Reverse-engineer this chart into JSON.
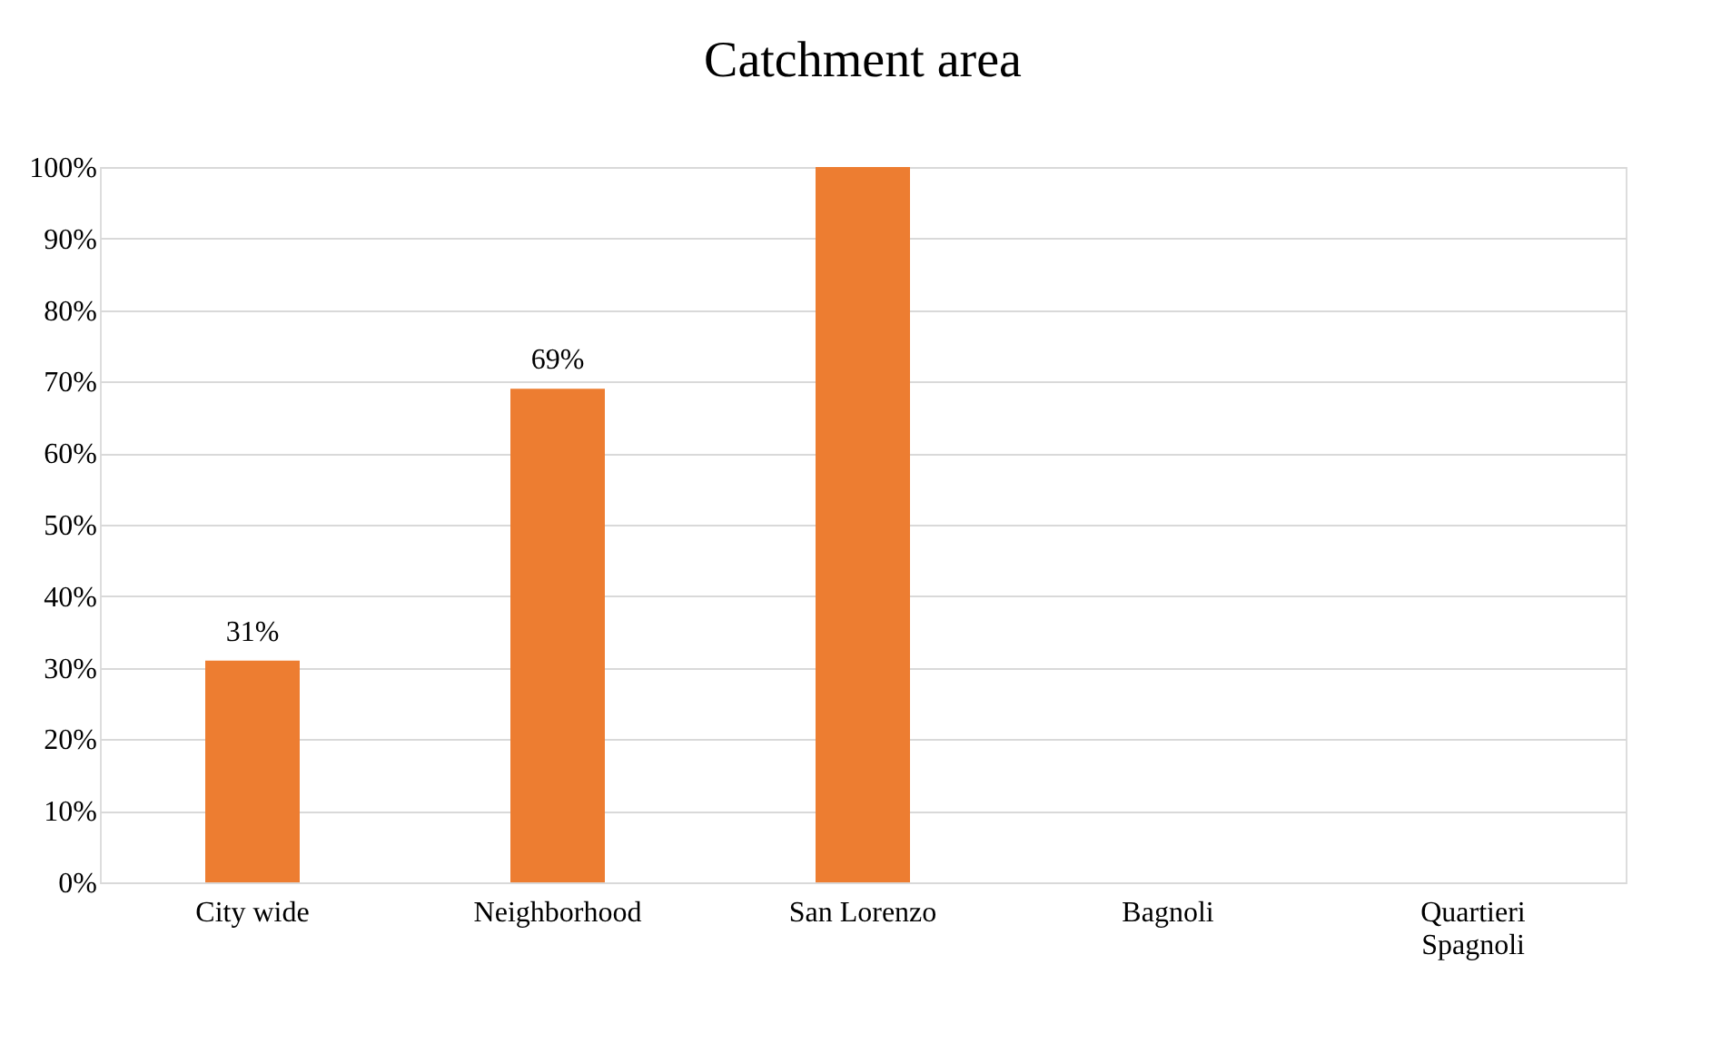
{
  "chart_data": {
    "type": "bar",
    "title": "Catchment area",
    "categories": [
      "City wide",
      "Neighborhood",
      "San Lorenzo",
      "Bagnoli",
      "Quartieri Spagnoli"
    ],
    "values": [
      31,
      69,
      100,
      0,
      0
    ],
    "value_labels": [
      "31%",
      "69%",
      null,
      null,
      null
    ],
    "color": "#ed7d31",
    "ylim": [
      0,
      100
    ],
    "yticks": [
      {
        "value": 0,
        "label": "0%"
      },
      {
        "value": 10,
        "label": "10%"
      },
      {
        "value": 20,
        "label": "20%"
      },
      {
        "value": 30,
        "label": "30%"
      },
      {
        "value": 40,
        "label": "40%"
      },
      {
        "value": 50,
        "label": "50%"
      },
      {
        "value": 60,
        "label": "60%"
      },
      {
        "value": 70,
        "label": "70%"
      },
      {
        "value": 80,
        "label": "80%"
      },
      {
        "value": 90,
        "label": "90%"
      },
      {
        "value": 100,
        "label": "100%"
      }
    ],
    "grid": "y"
  }
}
